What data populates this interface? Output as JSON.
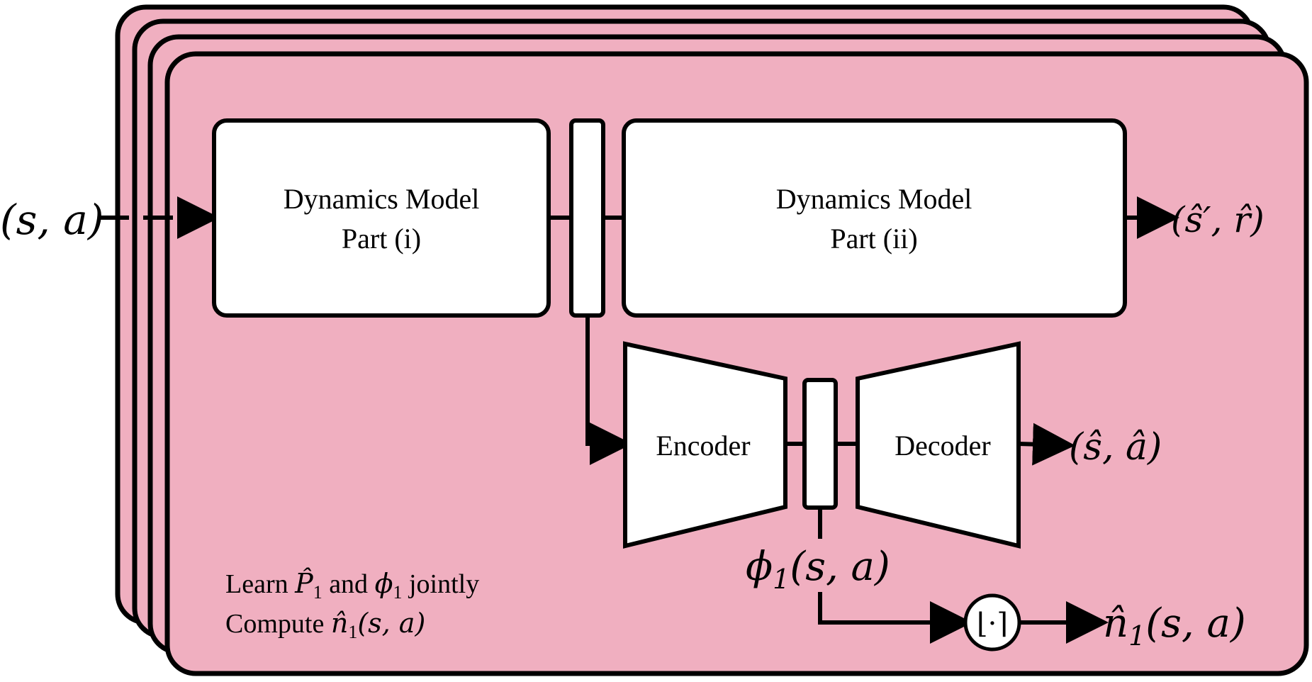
{
  "colors": {
    "panel_fill": "#f0afc0",
    "stroke": "#000000",
    "box_fill": "#ffffff"
  },
  "input_label": "(s, a)",
  "dynamics_part_i": {
    "line1": "Dynamics Model",
    "line2": "Part (i)"
  },
  "dynamics_part_ii": {
    "line1": "Dynamics Model",
    "line2": "Part (ii)"
  },
  "output_dynamics": "(ŝ′, r̂)",
  "encoder_label": "Encoder",
  "decoder_label": "Decoder",
  "output_autoencoder": "(ŝ, â)",
  "latent_label": "ϕ1(s, a)",
  "latent_symbol": "ϕ",
  "latent_subscript": "1",
  "latent_args": "(s, a)",
  "floor_symbol": "⌊·⌉",
  "count_output": "n̂1(s, a)",
  "count_symbol": "n̂",
  "count_subscript": "1",
  "count_args": "(s, a)",
  "caption": {
    "line1_prefix": "Learn ",
    "line1_p": "P̂",
    "line1_p_sub": "1",
    "line1_mid": " and ",
    "line1_phi": "ϕ",
    "line1_phi_sub": "1",
    "line1_suffix": " jointly",
    "line2_prefix": "Compute ",
    "line2_n": "n̂",
    "line2_n_sub": "1",
    "line2_args": "(s, a)"
  }
}
